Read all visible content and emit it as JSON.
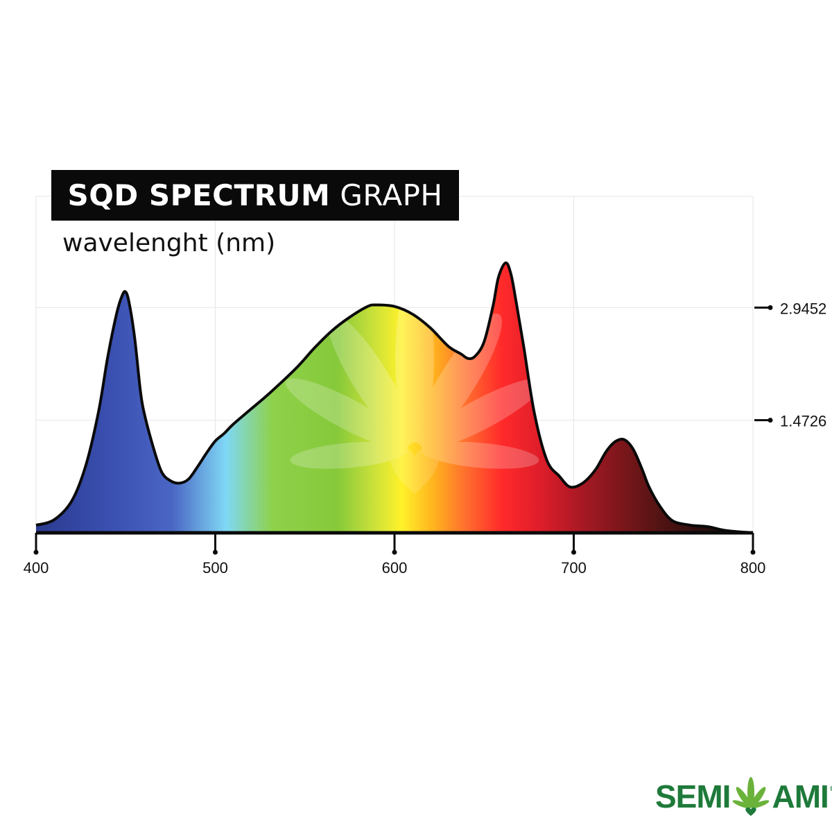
{
  "header": {
    "title_bold": "SQD SPECTRUM",
    "title_light": "GRAPH",
    "subtitle": "wavelenght (nm)"
  },
  "brand": {
    "left": "SEMI",
    "right": "AMI",
    "reg": "®",
    "color": "#1e7a3a"
  },
  "chart_data": {
    "type": "area",
    "title": "SQD SPECTRUM GRAPH",
    "xlabel": "wavelenght (nm)",
    "ylabel": "",
    "xlim": [
      400,
      800
    ],
    "ylim": [
      0,
      4.4
    ],
    "x_ticks": [
      "400",
      "500",
      "600",
      "700",
      "800"
    ],
    "x_tick_values": [
      400,
      500,
      600,
      700,
      800
    ],
    "y_ticks": [
      "2.9452",
      "1.4726"
    ],
    "y_tick_values": [
      2.9452,
      1.4726
    ],
    "grid": true,
    "series": [
      {
        "x": [
          400,
          410,
          420,
          428,
          435,
          440,
          445,
          448,
          450,
          452,
          455,
          458,
          460,
          465,
          470,
          475,
          480,
          485,
          490,
          495,
          500,
          505,
          510,
          520,
          530,
          545,
          555,
          565,
          575,
          585,
          590,
          600,
          610,
          620,
          630,
          637,
          641,
          645,
          650,
          655,
          658,
          662,
          665,
          668,
          672,
          678,
          685,
          692,
          698,
          705,
          712,
          718,
          723,
          728,
          733,
          738,
          742,
          748,
          755,
          765,
          775,
          785,
          800
        ],
        "values": [
          0.1,
          0.17,
          0.42,
          0.9,
          1.6,
          2.3,
          2.87,
          3.1,
          3.15,
          3.0,
          2.55,
          1.9,
          1.6,
          1.15,
          0.8,
          0.68,
          0.65,
          0.7,
          0.86,
          1.04,
          1.2,
          1.3,
          1.42,
          1.62,
          1.82,
          2.15,
          2.41,
          2.64,
          2.82,
          2.96,
          2.98,
          2.96,
          2.86,
          2.68,
          2.44,
          2.34,
          2.28,
          2.31,
          2.5,
          2.97,
          3.34,
          3.53,
          3.38,
          3.0,
          2.45,
          1.57,
          0.95,
          0.74,
          0.6,
          0.65,
          0.82,
          1.06,
          1.19,
          1.22,
          1.1,
          0.84,
          0.6,
          0.35,
          0.16,
          0.1,
          0.08,
          0.03,
          0.0
        ]
      }
    ]
  }
}
